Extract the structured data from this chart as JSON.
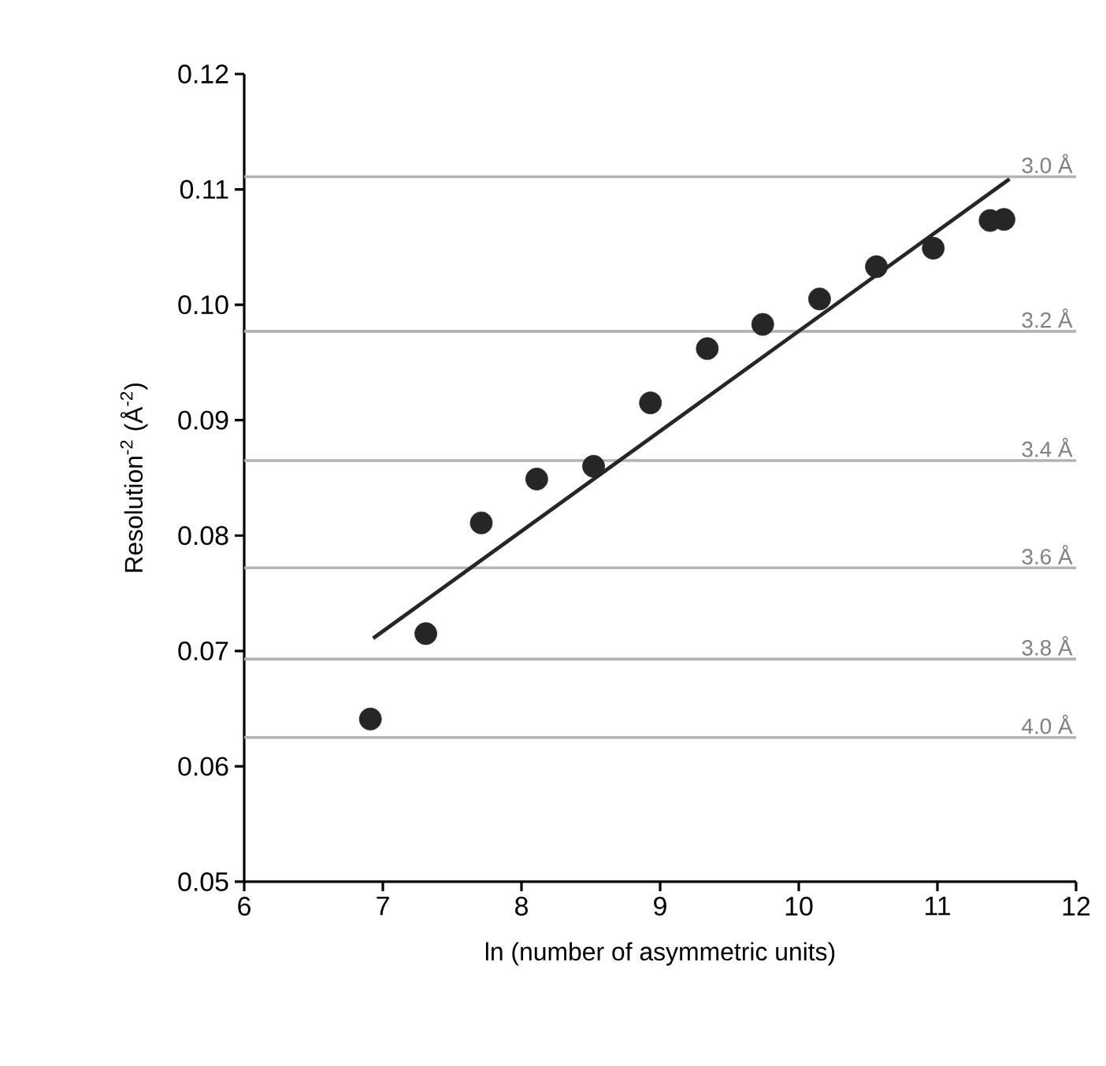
{
  "chart_data": {
    "type": "scatter",
    "xlabel": "ln (number of asymmetric units)",
    "ylabel": "Resolution$^{-2}$ (Å$^{-2}$)",
    "xlim": [
      6,
      12
    ],
    "xticks": [
      6,
      7,
      8,
      9,
      10,
      11,
      12
    ],
    "ylim": [
      0.05,
      0.12
    ],
    "yticks": [
      {
        "value": 0.05,
        "label": "0.05"
      },
      {
        "value": 0.06,
        "label": "0.06"
      },
      {
        "value": 0.07,
        "label": "0.07"
      },
      {
        "value": 0.08,
        "label": "0.08"
      },
      {
        "value": 0.09,
        "label": "0.09"
      },
      {
        "value": 0.1,
        "label": "0.10"
      },
      {
        "value": 0.11,
        "label": "0.11"
      },
      {
        "value": 0.12,
        "label": "0.12"
      }
    ],
    "grid": false,
    "series": [
      {
        "color": "#262626",
        "marker": "circle",
        "x": [
          6.91,
          7.31,
          7.71,
          8.11,
          8.52,
          8.93,
          9.34,
          9.74,
          10.15,
          10.56,
          10.97,
          11.38,
          11.48
        ],
        "values": [
          0.0641,
          0.0715,
          0.0811,
          0.0849,
          0.086,
          0.0915,
          0.0962,
          0.0983,
          0.1005,
          0.1033,
          0.1049,
          0.1073,
          0.1074
        ]
      },
      {
        "type": "line",
        "color": "#262626",
        "marker": "none",
        "x": [
          6.93,
          11.52
        ],
        "values": [
          0.0711,
          0.1109
        ]
      }
    ],
    "ref_lines": [
      {
        "axis": "y",
        "value": 0.1111,
        "label": "3.0 Å",
        "color": "#b3b3b3"
      },
      {
        "axis": "y",
        "value": 0.0977,
        "label": "3.2 Å",
        "color": "#b3b3b3"
      },
      {
        "axis": "y",
        "value": 0.0865,
        "label": "3.4 Å",
        "color": "#b3b3b3"
      },
      {
        "axis": "y",
        "value": 0.0772,
        "label": "3.6 Å",
        "color": "#b3b3b3"
      },
      {
        "axis": "y",
        "value": 0.0693,
        "label": "3.8 Å",
        "color": "#b3b3b3"
      },
      {
        "axis": "y",
        "value": 0.0625,
        "label": "4.0 Å",
        "color": "#b3b3b3"
      }
    ]
  }
}
